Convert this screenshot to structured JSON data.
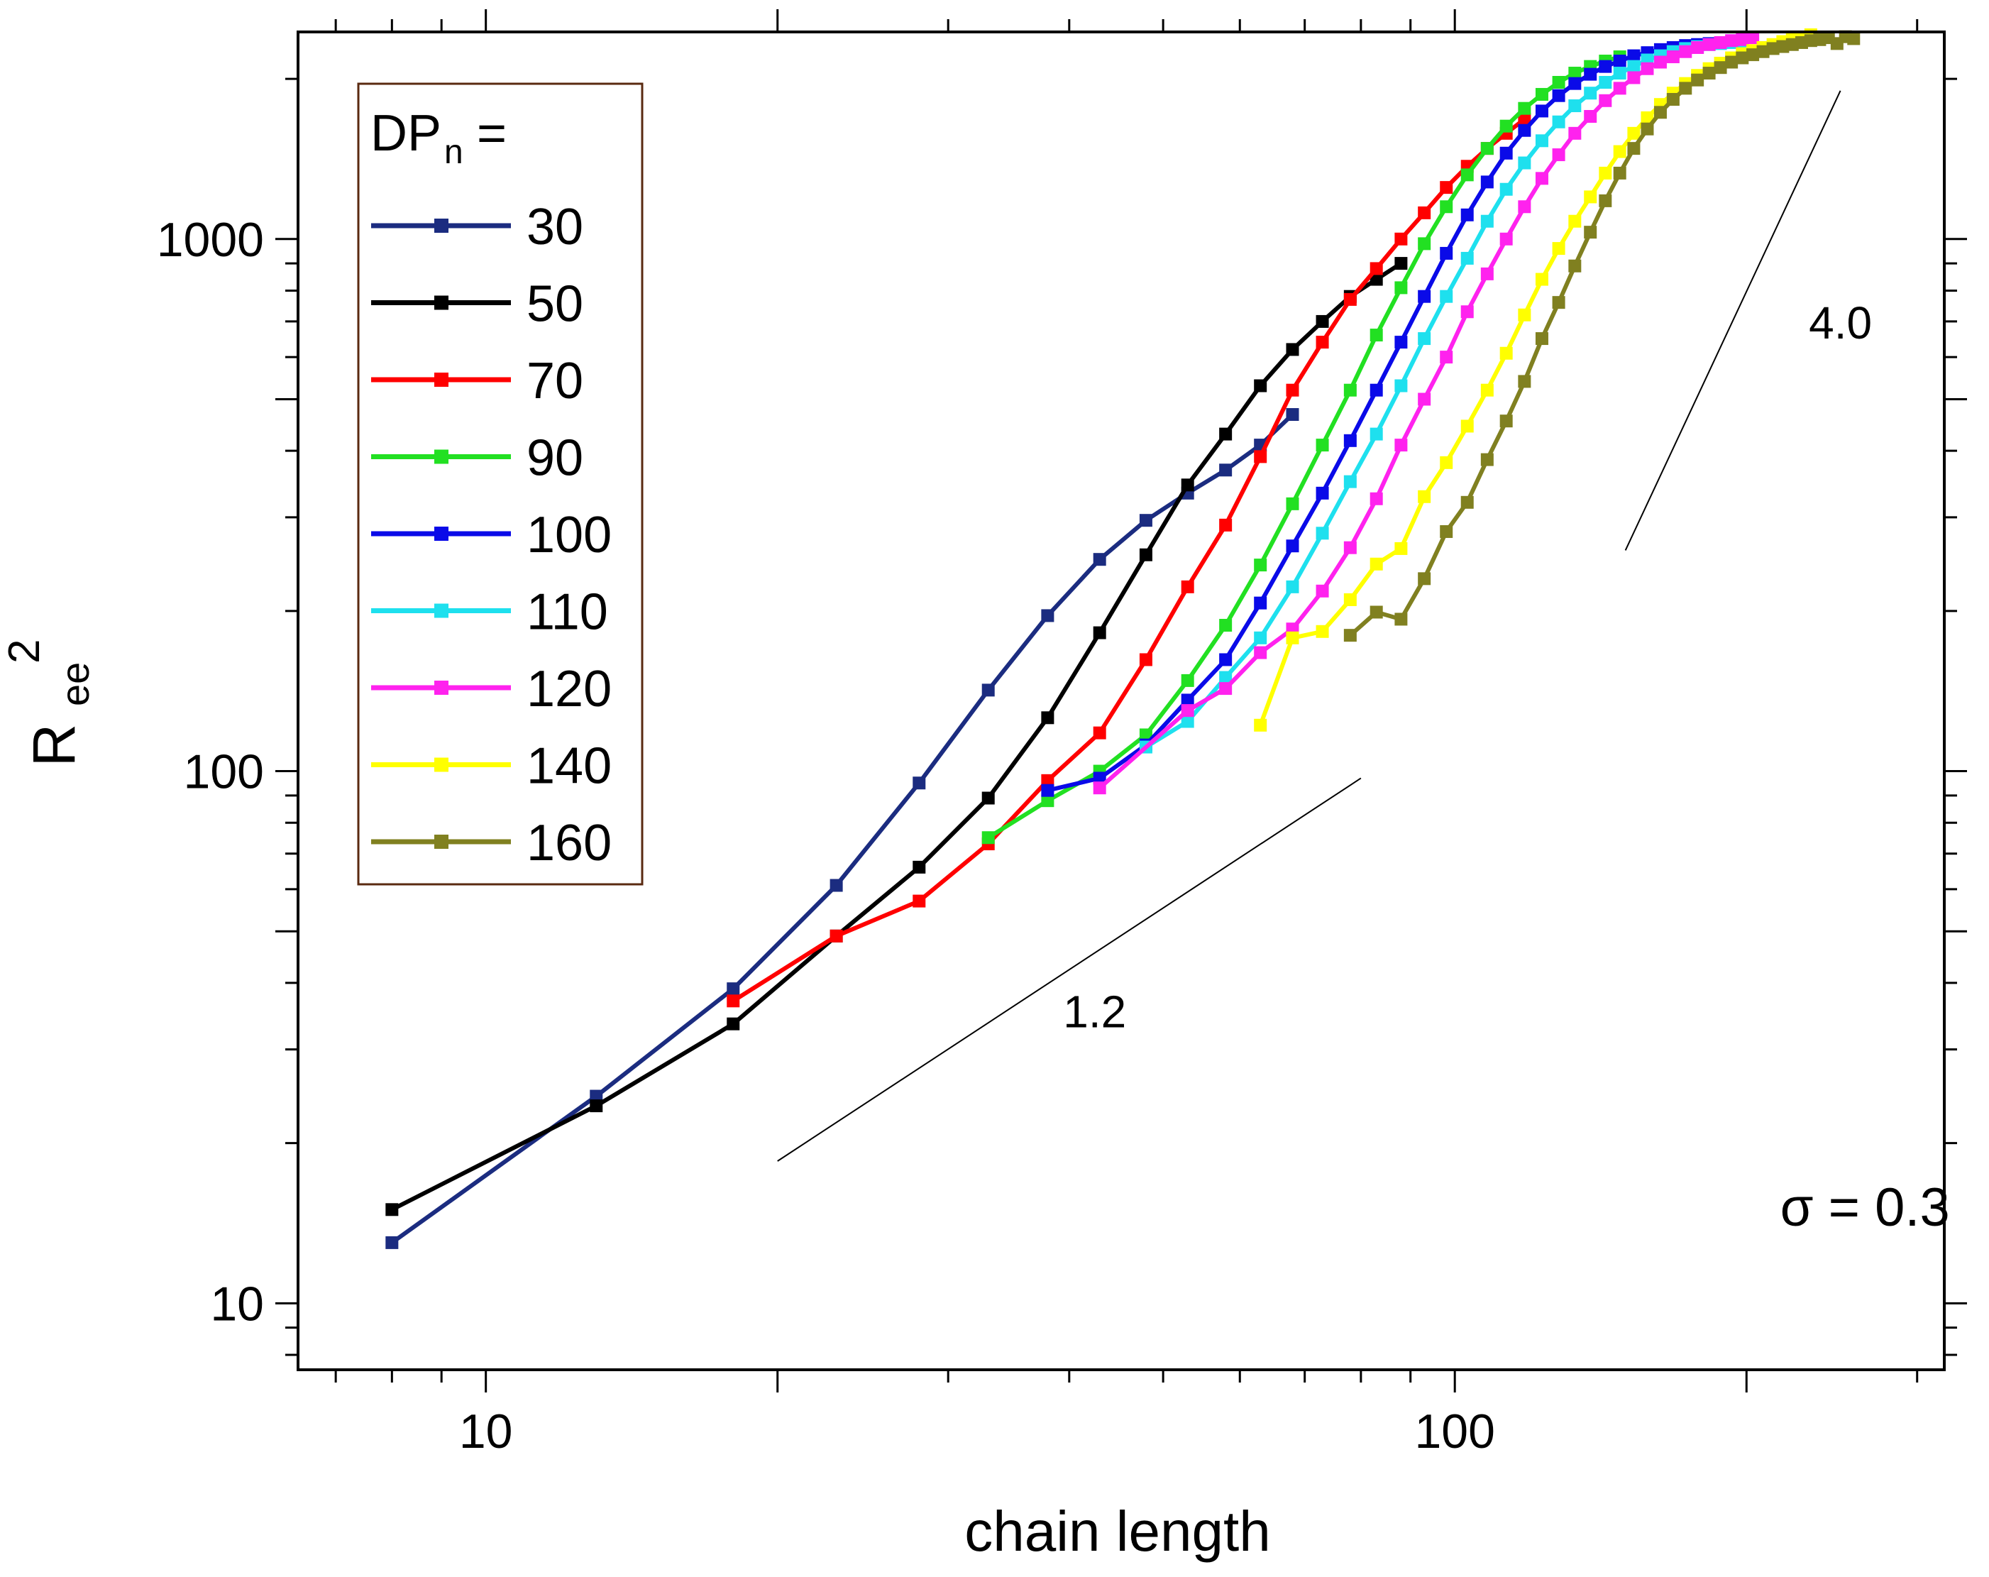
{
  "chart_data": {
    "type": "line",
    "title": "",
    "xlabel": "chain length",
    "ylabel": "R",
    "ylabel_sub": "ee",
    "ylabel_sup": "2",
    "x_scale": "log",
    "y_scale": "log",
    "xlim": [
      6.4,
      320
    ],
    "ylim": [
      7.5,
      2450
    ],
    "x_tick_labels": [
      "10",
      "100"
    ],
    "y_tick_labels": [
      "10",
      "100",
      "1000"
    ],
    "legend_title": "DP",
    "legend_title_sub": "n",
    "legend_title_suffix": " =",
    "legend_position": "top-left",
    "grid": false,
    "annotations": [
      {
        "text": "1.2",
        "x": 42.5,
        "y": 33
      },
      {
        "text": "4.0",
        "x": 250,
        "y": 650
      },
      {
        "text": "σ = 0.3",
        "x": 265,
        "y": 14
      }
    ],
    "slope_lines": [
      {
        "label": "1.2",
        "x": [
          20,
          80
        ],
        "y": [
          18.5,
          97
        ]
      },
      {
        "label": "4.0",
        "x": [
          150,
          250
        ],
        "y": [
          260,
          1900
        ]
      }
    ],
    "series": [
      {
        "name": "30",
        "color": "#1b2c80",
        "x": [
          8,
          13,
          18,
          23,
          28,
          33,
          38,
          43,
          48,
          53,
          58,
          63,
          68
        ],
        "y": [
          13,
          24.5,
          39,
          61,
          95,
          142,
          196,
          250,
          296,
          333,
          368,
          410,
          468
        ]
      },
      {
        "name": "50",
        "color": "#000000",
        "x": [
          8,
          13,
          18,
          23,
          28,
          33,
          38,
          43,
          48,
          53,
          58,
          63,
          68,
          73,
          78,
          83,
          88
        ],
        "y": [
          15,
          23.5,
          33.5,
          49,
          66,
          89,
          126,
          182,
          255,
          345,
          430,
          530,
          620,
          700,
          780,
          840,
          900
        ]
      },
      {
        "name": "70",
        "color": "#ff0000",
        "x": [
          18,
          23,
          28,
          33,
          38,
          43,
          48,
          53,
          58,
          63,
          68,
          73,
          78,
          83,
          88,
          93,
          98,
          103,
          108,
          113,
          118
        ],
        "y": [
          37,
          49,
          57,
          73,
          96,
          118,
          162,
          222,
          290,
          390,
          520,
          640,
          770,
          880,
          1000,
          1120,
          1250,
          1370,
          1480,
          1580,
          1680
        ]
      },
      {
        "name": "90",
        "color": "#22e022",
        "x": [
          33,
          38,
          43,
          48,
          53,
          58,
          63,
          68,
          73,
          78,
          83,
          88,
          93,
          98,
          103,
          108,
          113,
          118,
          123,
          128,
          133,
          138,
          143,
          148
        ],
        "y": [
          75,
          88,
          100,
          117,
          148,
          188,
          244,
          318,
          410,
          520,
          660,
          810,
          980,
          1150,
          1320,
          1480,
          1630,
          1760,
          1870,
          1970,
          2050,
          2110,
          2160,
          2200
        ]
      },
      {
        "name": "100",
        "color": "#0a0ae8",
        "x": [
          38,
          43,
          48,
          53,
          58,
          63,
          68,
          73,
          78,
          83,
          88,
          93,
          98,
          103,
          108,
          113,
          118,
          123,
          128,
          133,
          138,
          143,
          148,
          153,
          158,
          163,
          168,
          173,
          178,
          183
        ],
        "y": [
          92,
          97,
          112,
          136,
          162,
          207,
          265,
          333,
          418,
          520,
          640,
          780,
          940,
          1110,
          1280,
          1450,
          1600,
          1740,
          1860,
          1960,
          2040,
          2110,
          2160,
          2210,
          2240,
          2270,
          2290,
          2310,
          2320,
          2330
        ]
      },
      {
        "name": "110",
        "color": "#1ee0ee",
        "x": [
          48,
          53,
          58,
          63,
          68,
          73,
          78,
          83,
          88,
          93,
          98,
          103,
          108,
          113,
          118,
          123,
          128,
          133,
          138,
          143,
          148,
          153,
          158,
          163,
          168,
          173,
          178,
          183,
          188,
          193,
          198
        ],
        "y": [
          111,
          124,
          150,
          178,
          222,
          280,
          350,
          430,
          530,
          650,
          780,
          920,
          1080,
          1240,
          1390,
          1530,
          1660,
          1780,
          1880,
          1970,
          2050,
          2110,
          2170,
          2210,
          2250,
          2280,
          2300,
          2320,
          2330,
          2340,
          2350
        ]
      },
      {
        "name": "120",
        "color": "#ff22ee",
        "x": [
          43,
          53,
          58,
          63,
          68,
          73,
          78,
          83,
          88,
          93,
          98,
          103,
          108,
          113,
          118,
          123,
          128,
          133,
          138,
          143,
          148,
          153,
          158,
          163,
          168,
          173,
          178,
          183,
          188,
          193,
          198,
          203
        ],
        "y": [
          93,
          130,
          143,
          167,
          185,
          218,
          263,
          325,
          410,
          500,
          600,
          730,
          860,
          1000,
          1150,
          1300,
          1440,
          1580,
          1700,
          1820,
          1920,
          2010,
          2090,
          2150,
          2200,
          2250,
          2290,
          2320,
          2340,
          2360,
          2370,
          2390
        ]
      },
      {
        "name": "140",
        "color": "#ffff00",
        "x": [
          63,
          68,
          73,
          78,
          83,
          88,
          93,
          98,
          103,
          108,
          113,
          118,
          123,
          128,
          133,
          138,
          143,
          148,
          153,
          158,
          163,
          168,
          173,
          178,
          183,
          188,
          193,
          198,
          203,
          208,
          213,
          218,
          223,
          228,
          233
        ],
        "y": [
          122,
          178,
          183,
          210,
          245,
          262,
          328,
          380,
          445,
          520,
          610,
          720,
          840,
          960,
          1080,
          1200,
          1330,
          1460,
          1580,
          1690,
          1790,
          1880,
          1960,
          2030,
          2090,
          2140,
          2190,
          2230,
          2260,
          2290,
          2320,
          2350,
          2370,
          2390,
          2420
        ]
      },
      {
        "name": "160",
        "color": "#808020",
        "x": [
          78,
          83,
          88,
          93,
          98,
          103,
          108,
          113,
          118,
          123,
          128,
          133,
          138,
          143,
          148,
          153,
          158,
          163,
          168,
          173,
          178,
          183,
          188,
          193,
          198,
          203,
          208,
          213,
          218,
          223,
          228,
          233,
          238,
          243,
          248,
          253,
          258
        ],
        "y": [
          180,
          199,
          193,
          230,
          282,
          320,
          385,
          455,
          540,
          650,
          760,
          890,
          1030,
          1180,
          1330,
          1480,
          1610,
          1730,
          1830,
          1920,
          1990,
          2050,
          2100,
          2150,
          2190,
          2220,
          2250,
          2280,
          2300,
          2320,
          2340,
          2360,
          2370,
          2390,
          2330,
          2400,
          2380
        ]
      }
    ]
  }
}
